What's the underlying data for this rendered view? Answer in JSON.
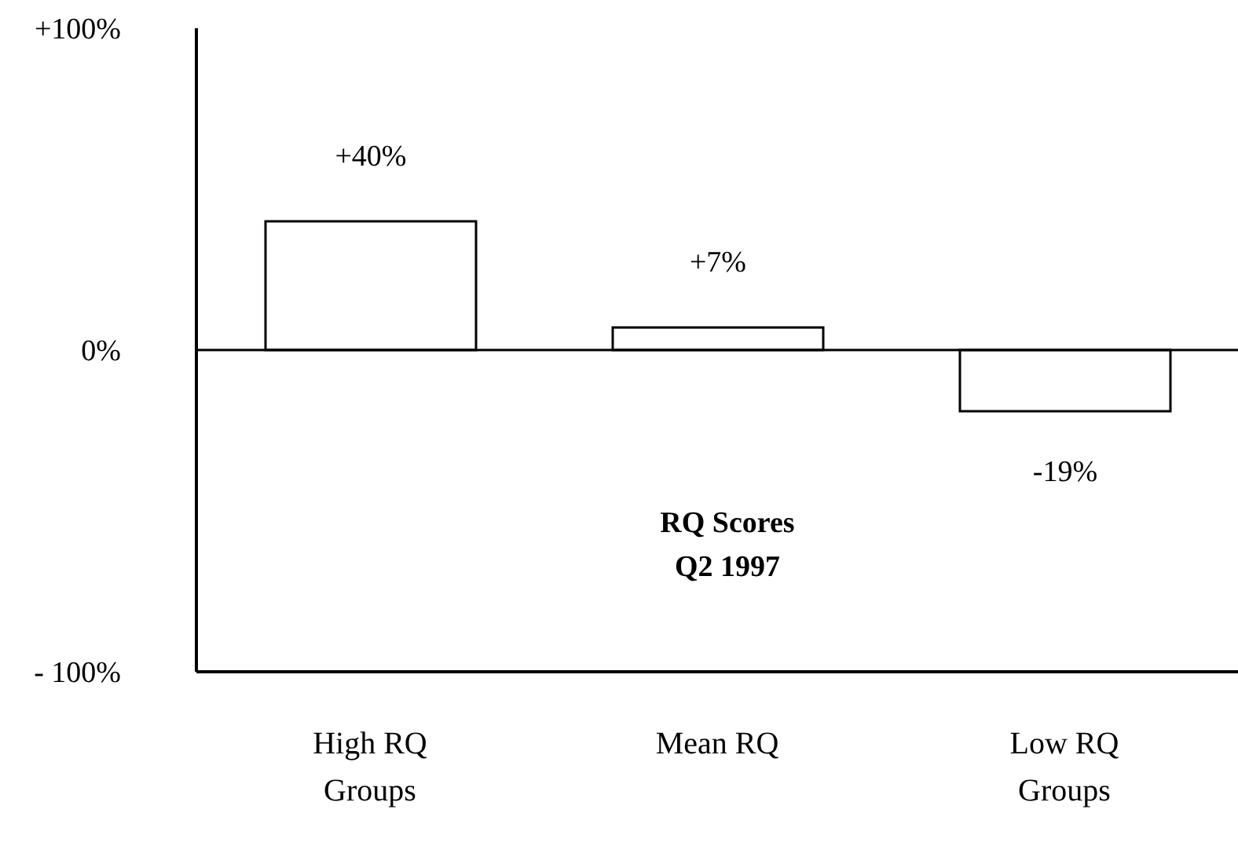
{
  "chart_data": {
    "type": "bar",
    "categories": [
      "High RQ Groups",
      "Mean RQ",
      "Low RQ Groups"
    ],
    "values": [
      40,
      7,
      -19
    ],
    "color": "#ffffff",
    "value_labels": [
      "+40%",
      "+7%",
      "-19%"
    ],
    "ylim": [
      -100,
      100
    ],
    "yticks": [
      {
        "value": -100,
        "label": "- 100%"
      },
      {
        "value": 0,
        "label": "0%"
      },
      {
        "value": 100,
        "label": "+100%"
      }
    ],
    "annotations": [
      "RQ Scores Q2 1997"
    ],
    "ref_lines": [
      {
        "axis": "y",
        "value": 0,
        "label": null
      }
    ]
  }
}
